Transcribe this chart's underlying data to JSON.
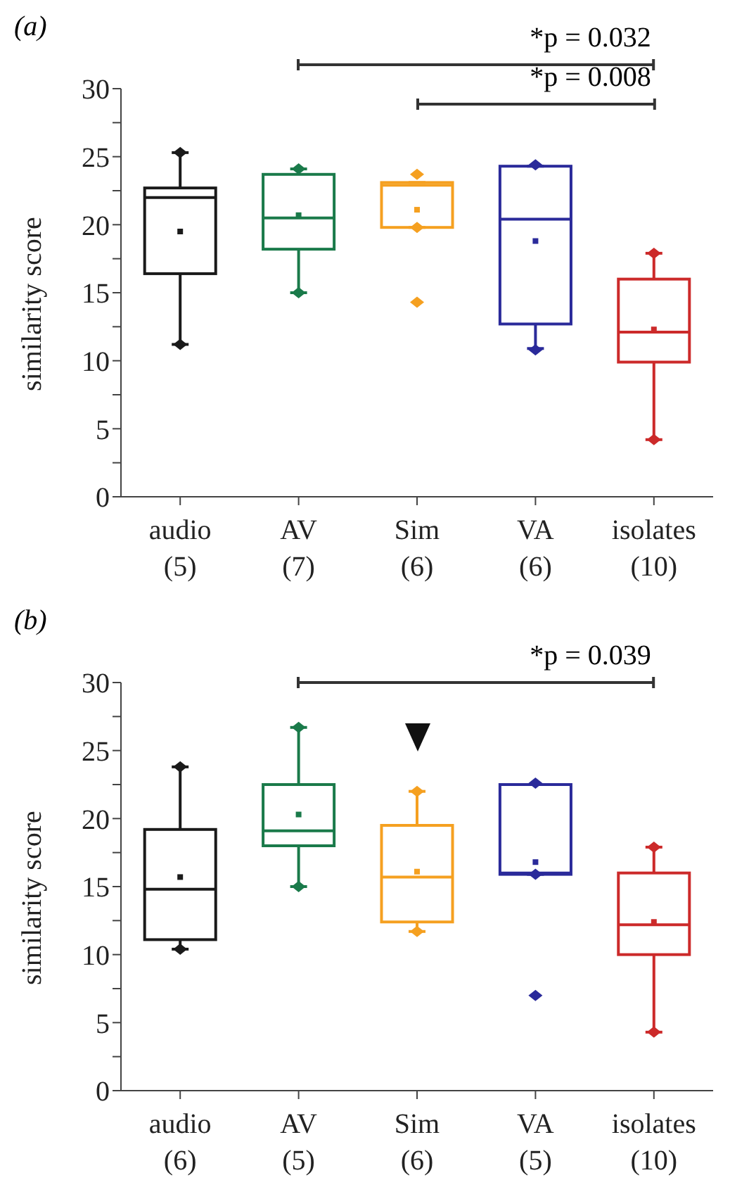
{
  "chart_data": [
    {
      "type": "box",
      "title": "(a)",
      "ylabel": "similarity score",
      "categories": [
        "audio\n(5)",
        "AV\n(7)",
        "Sim\n(6)",
        "VA\n(6)",
        "isolates\n(10)"
      ],
      "colors": [
        "#1a1a1a",
        "#1a7a4a",
        "#f5a020",
        "#2a2a9a",
        "#cc2a2a"
      ],
      "boxes": [
        {
          "low": 11.2,
          "q1": 16.4,
          "median": 22.0,
          "q3": 22.7,
          "high": 25.3,
          "mean": 19.5,
          "outliers": [
            25.3,
            11.2
          ]
        },
        {
          "low": 15.0,
          "q1": 18.2,
          "median": 20.5,
          "q3": 23.7,
          "high": 24.1,
          "mean": 20.7,
          "outliers": [
            24.1,
            15.0
          ]
        },
        {
          "low": 19.8,
          "q1": 19.8,
          "median": 22.9,
          "q3": 23.1,
          "high": 23.1,
          "mean": 21.1,
          "outliers": [
            23.7,
            19.8,
            14.3
          ]
        },
        {
          "low": 10.9,
          "q1": 12.7,
          "median": 20.4,
          "q3": 24.3,
          "high": 24.3,
          "mean": 18.8,
          "outliers": [
            24.4,
            10.8
          ]
        },
        {
          "low": 4.2,
          "q1": 9.9,
          "median": 12.1,
          "q3": 16.0,
          "high": 17.9,
          "mean": 12.3,
          "outliers": [
            17.9,
            4.2
          ]
        }
      ],
      "ylim": [
        0,
        30
      ],
      "yticks": [
        0,
        {
          "value": 2.5,
          "label": null
        },
        5,
        {
          "value": 7.5,
          "label": null
        },
        10,
        {
          "value": 12.5,
          "label": null
        },
        15,
        {
          "value": 17.5,
          "label": null
        },
        20,
        {
          "value": 22.5,
          "label": null
        },
        25,
        {
          "value": 27.5,
          "label": null
        },
        30
      ],
      "annotations": [
        "*p = 0.032",
        "*p = 0.008"
      ]
    },
    {
      "type": "box",
      "title": "(b)",
      "ylabel": "similarity score",
      "categories": [
        "audio\n(6)",
        "AV\n(5)",
        "Sim\n(6)",
        "VA\n(5)",
        "isolates\n(10)"
      ],
      "colors": [
        "#1a1a1a",
        "#1a7a4a",
        "#f5a020",
        "#2a2a9a",
        "#cc2a2a"
      ],
      "boxes": [
        {
          "low": 10.4,
          "q1": 11.1,
          "median": 14.8,
          "q3": 19.2,
          "high": 23.8,
          "mean": 15.7,
          "outliers": [
            23.8,
            10.4
          ]
        },
        {
          "low": 15.0,
          "q1": 18.0,
          "median": 19.1,
          "q3": 22.5,
          "high": 26.7,
          "mean": 20.3,
          "outliers": [
            26.7,
            15.0
          ]
        },
        {
          "low": 11.7,
          "q1": 12.4,
          "median": 15.7,
          "q3": 19.5,
          "high": 22.0,
          "mean": 16.1,
          "outliers": [
            22.0,
            11.7
          ]
        },
        {
          "low": 15.9,
          "q1": 15.9,
          "median": 16.0,
          "q3": 22.5,
          "high": 22.5,
          "mean": 16.8,
          "outliers": [
            22.6,
            15.9,
            7.0
          ]
        },
        {
          "low": 4.3,
          "q1": 10.0,
          "median": 12.2,
          "q3": 16.0,
          "high": 17.9,
          "mean": 12.4,
          "outliers": [
            17.9,
            4.3
          ]
        }
      ],
      "ylim": [
        0,
        30
      ],
      "yticks": [
        0,
        {
          "value": 2.5,
          "label": null
        },
        5,
        {
          "value": 7.5,
          "label": null
        },
        10,
        {
          "value": 12.5,
          "label": null
        },
        15,
        {
          "value": 17.5,
          "label": null
        },
        20,
        {
          "value": 22.5,
          "label": null
        },
        25,
        {
          "value": 27.5,
          "label": null
        },
        30
      ],
      "annotations": [
        "*p = 0.039"
      ]
    }
  ]
}
